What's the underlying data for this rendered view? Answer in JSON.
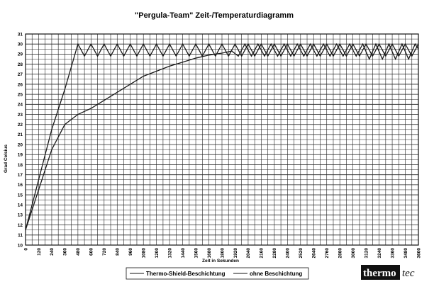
{
  "chart_data": {
    "type": "line",
    "title": "\"Pergula-Team\" Zeit-/Temperaturdiagramm",
    "xlabel": "Zeit in Sekunden",
    "ylabel": "Grad Celsius",
    "xlim": [
      0,
      3600
    ],
    "ylim": [
      10,
      31
    ],
    "x_ticks": [
      0,
      120,
      240,
      360,
      480,
      600,
      720,
      840,
      960,
      1080,
      1200,
      1320,
      1440,
      1560,
      1680,
      1800,
      1920,
      2040,
      2160,
      2280,
      2400,
      2520,
      2640,
      2760,
      2880,
      3000,
      3120,
      3240,
      3360,
      3480,
      3600
    ],
    "y_ticks": [
      10,
      11,
      12,
      13,
      14,
      15,
      16,
      17,
      18,
      19,
      20,
      21,
      22,
      23,
      24,
      25,
      26,
      27,
      28,
      29,
      30,
      31
    ],
    "grid": true,
    "series": [
      {
        "name": "Thermo-Shield-Beschichtung",
        "points": [
          [
            0,
            11.5
          ],
          [
            120,
            16.5
          ],
          [
            240,
            21.5
          ],
          [
            360,
            25.5
          ],
          [
            480,
            30
          ],
          [
            540,
            28.8
          ],
          [
            600,
            30
          ],
          [
            660,
            28.8
          ],
          [
            720,
            30
          ],
          [
            780,
            28.8
          ],
          [
            840,
            30
          ],
          [
            900,
            28.8
          ],
          [
            960,
            30
          ],
          [
            1020,
            28.8
          ],
          [
            1080,
            30
          ],
          [
            1140,
            28.8
          ],
          [
            1200,
            30
          ],
          [
            1260,
            28.8
          ],
          [
            1320,
            30
          ],
          [
            1380,
            28.8
          ],
          [
            1440,
            30
          ],
          [
            1500,
            28.8
          ],
          [
            1560,
            30
          ],
          [
            1620,
            28.8
          ],
          [
            1680,
            30
          ],
          [
            1740,
            28.8
          ],
          [
            1800,
            30
          ],
          [
            1860,
            28.8
          ],
          [
            1920,
            30
          ],
          [
            1980,
            28.8
          ],
          [
            2040,
            30
          ],
          [
            2100,
            28.8
          ],
          [
            2160,
            30
          ],
          [
            2220,
            28.8
          ],
          [
            2280,
            30
          ],
          [
            2340,
            28.8
          ],
          [
            2400,
            30
          ],
          [
            2460,
            28.8
          ],
          [
            2520,
            30
          ],
          [
            2580,
            28.8
          ],
          [
            2640,
            30
          ],
          [
            2700,
            28.8
          ],
          [
            2760,
            30
          ],
          [
            2820,
            28.8
          ],
          [
            2880,
            30
          ],
          [
            2940,
            28.8
          ],
          [
            3000,
            30
          ],
          [
            3060,
            28.8
          ],
          [
            3120,
            30
          ],
          [
            3180,
            28.8
          ],
          [
            3240,
            30
          ],
          [
            3300,
            28.8
          ],
          [
            3360,
            30
          ],
          [
            3420,
            28.8
          ],
          [
            3480,
            30
          ],
          [
            3540,
            28.8
          ],
          [
            3600,
            30
          ]
        ]
      },
      {
        "name": "ohne Beschichtung",
        "points": [
          [
            0,
            11.5
          ],
          [
            120,
            15.5
          ],
          [
            240,
            19.5
          ],
          [
            360,
            22
          ],
          [
            480,
            23
          ],
          [
            600,
            23.6
          ],
          [
            720,
            24.4
          ],
          [
            840,
            25.2
          ],
          [
            960,
            26
          ],
          [
            1080,
            26.8
          ],
          [
            1200,
            27.3
          ],
          [
            1320,
            27.8
          ],
          [
            1440,
            28.2
          ],
          [
            1560,
            28.6
          ],
          [
            1680,
            28.9
          ],
          [
            1800,
            29.1
          ],
          [
            1890,
            29.3
          ],
          [
            1950,
            28.8
          ],
          [
            2010,
            30
          ],
          [
            2070,
            28.8
          ],
          [
            2130,
            30
          ],
          [
            2190,
            28.8
          ],
          [
            2250,
            30
          ],
          [
            2310,
            28.8
          ],
          [
            2370,
            30
          ],
          [
            2430,
            28.8
          ],
          [
            2490,
            30
          ],
          [
            2550,
            28.8
          ],
          [
            2610,
            30
          ],
          [
            2670,
            28.8
          ],
          [
            2730,
            30
          ],
          [
            2790,
            28.8
          ],
          [
            2850,
            30
          ],
          [
            2910,
            28.8
          ],
          [
            2970,
            30
          ],
          [
            3030,
            28.8
          ],
          [
            3090,
            30
          ],
          [
            3150,
            28.5
          ],
          [
            3210,
            30
          ],
          [
            3270,
            28.5
          ],
          [
            3330,
            30
          ],
          [
            3390,
            28.5
          ],
          [
            3450,
            30
          ],
          [
            3510,
            28.5
          ],
          [
            3570,
            30
          ],
          [
            3600,
            29.5
          ]
        ]
      }
    ]
  },
  "logo": {
    "part1": "thermo",
    "part2": "tec"
  },
  "colors": {
    "line": "#1a1a1a",
    "grid": "#222222",
    "logo_box": "#111111"
  }
}
